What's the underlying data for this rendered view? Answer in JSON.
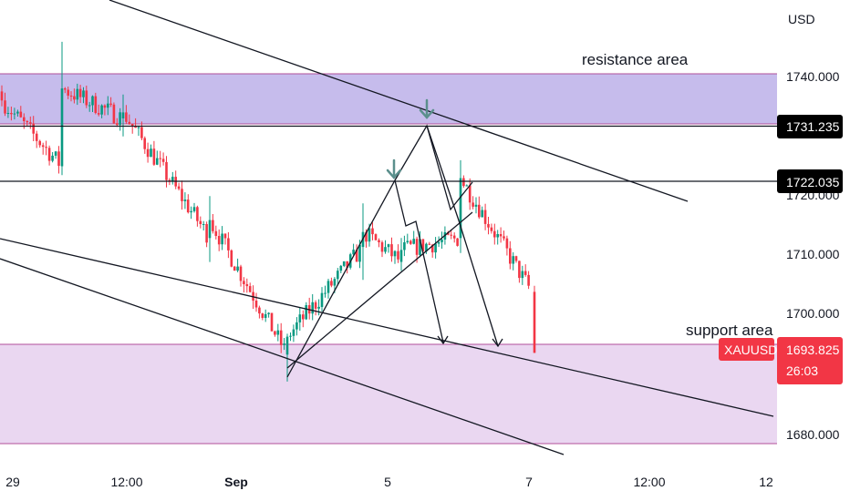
{
  "chart_data": {
    "type": "candlestick",
    "symbol": "XAUUSD",
    "currency": "USD",
    "ylim": [
      1675.5,
      1747.0
    ],
    "price_ticks": [
      1740.0,
      1720.0,
      1710.0,
      1700.0,
      1680.0
    ],
    "price_tick_labels": [
      "1740.000",
      "1720.000",
      "1710.000",
      "1700.000",
      "1680.000"
    ],
    "x_ticks": [
      "29",
      "12:00",
      "Sep",
      "5",
      "7",
      "12:00",
      "12"
    ],
    "levels": [
      {
        "label": "1731.235",
        "price": 1731.235
      },
      {
        "label": "1722.035",
        "price": 1722.035
      }
    ],
    "current": {
      "symbol": "XAUUSD",
      "price": "1693.825",
      "countdown": "26:03",
      "color": "#f23645"
    },
    "zones": [
      {
        "name": "resistance area",
        "from": 1731.6,
        "to": 1740.3
      },
      {
        "name": "support area",
        "from": 1677.7,
        "to": 1694.1
      }
    ],
    "annotations": [
      "resistance area",
      "support area"
    ],
    "colors": {
      "up": "#089981",
      "down": "#f23645",
      "resistance_fill": "#b3a6e6",
      "support_fill": "#e6d0ef",
      "arrow": "#5b8f8c"
    },
    "grid": false,
    "key_points": [
      {
        "t": "29",
        "open": 1737.5,
        "high": 1738.5,
        "low": 1735.0,
        "close": 1736.0
      },
      {
        "t": "30",
        "open": 1725.0,
        "high": 1745.8,
        "low": 1723.5,
        "close": 1738.0
      },
      {
        "t": "12:00",
        "open": 1733.0,
        "high": 1737.0,
        "low": 1730.0,
        "close": 1734.0
      },
      {
        "t": "Sep",
        "open": 1713.0,
        "high": 1720.0,
        "low": 1709.0,
        "close": 1716.0
      },
      {
        "t": "2",
        "open": 1693.5,
        "high": 1697.0,
        "low": 1689.0,
        "close": 1696.5
      },
      {
        "t": "4",
        "open": 1711.5,
        "high": 1718.8,
        "low": 1706.0,
        "close": 1714.0
      },
      {
        "t": "5",
        "open": 1709.0,
        "high": 1713.0,
        "low": 1707.5,
        "close": 1711.0
      },
      {
        "t": "6",
        "open": 1713.0,
        "high": 1726.0,
        "low": 1710.5,
        "close": 1723.0
      },
      {
        "t": "7",
        "open": 1704.0,
        "high": 1705.0,
        "low": 1693.8,
        "close": 1693.8
      }
    ]
  }
}
